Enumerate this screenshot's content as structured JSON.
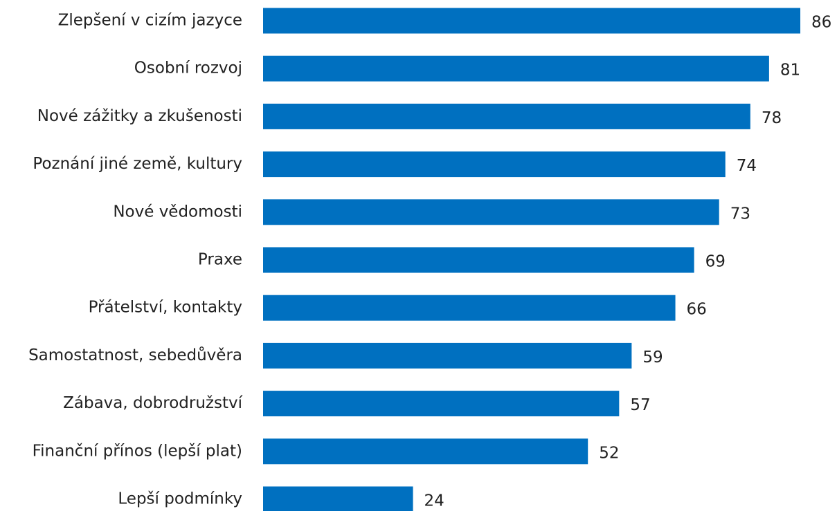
{
  "chart_data": {
    "type": "bar",
    "orientation": "horizontal",
    "categories": [
      "Zlepšení v cizím jazyce",
      "Osobní rozvoj",
      "Nové zážitky a zkušenosti",
      "Poznání jiné země, kultury",
      "Nové vědomosti",
      "Praxe",
      "Přátelství, kontakty",
      "Samostatnost, sebedůvěra",
      "Zábava, dobrodružství",
      "Finanční přínos (lepší plat)",
      "Lepší podmínky"
    ],
    "values": [
      86,
      81,
      78,
      74,
      73,
      69,
      66,
      59,
      57,
      52,
      24
    ],
    "color": "#0070c0"
  }
}
